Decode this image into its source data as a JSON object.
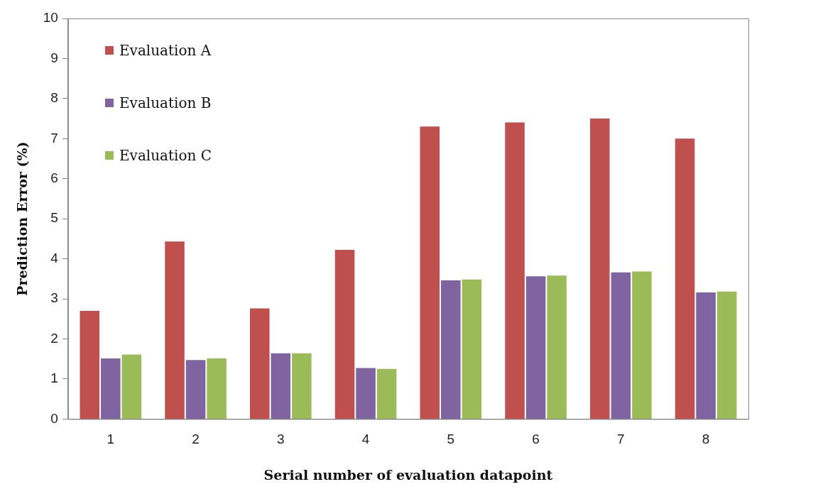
{
  "chart_data": {
    "type": "bar",
    "xlabel": "Serial number of evaluation datapoint",
    "ylabel": "Prediction Error (%)",
    "categories": [
      "1",
      "2",
      "3",
      "4",
      "5",
      "6",
      "7",
      "8"
    ],
    "series": [
      {
        "name": "Evaluation A",
        "color": "#c0504d",
        "values": [
          2.72,
          4.45,
          2.78,
          4.24,
          7.32,
          7.42,
          7.52,
          7.02
        ]
      },
      {
        "name": "Evaluation B",
        "color": "#8064a2",
        "values": [
          1.53,
          1.49,
          1.66,
          1.29,
          3.48,
          3.58,
          3.68,
          3.18
        ]
      },
      {
        "name": "Evaluation C",
        "color": "#9bbb59",
        "values": [
          1.63,
          1.53,
          1.66,
          1.27,
          3.5,
          3.6,
          3.7,
          3.2
        ]
      }
    ],
    "ylim": [
      0,
      10
    ],
    "yticks": [
      0,
      1,
      2,
      3,
      4,
      5,
      6,
      7,
      8,
      9,
      10
    ],
    "grid": false,
    "legend": "top left"
  }
}
